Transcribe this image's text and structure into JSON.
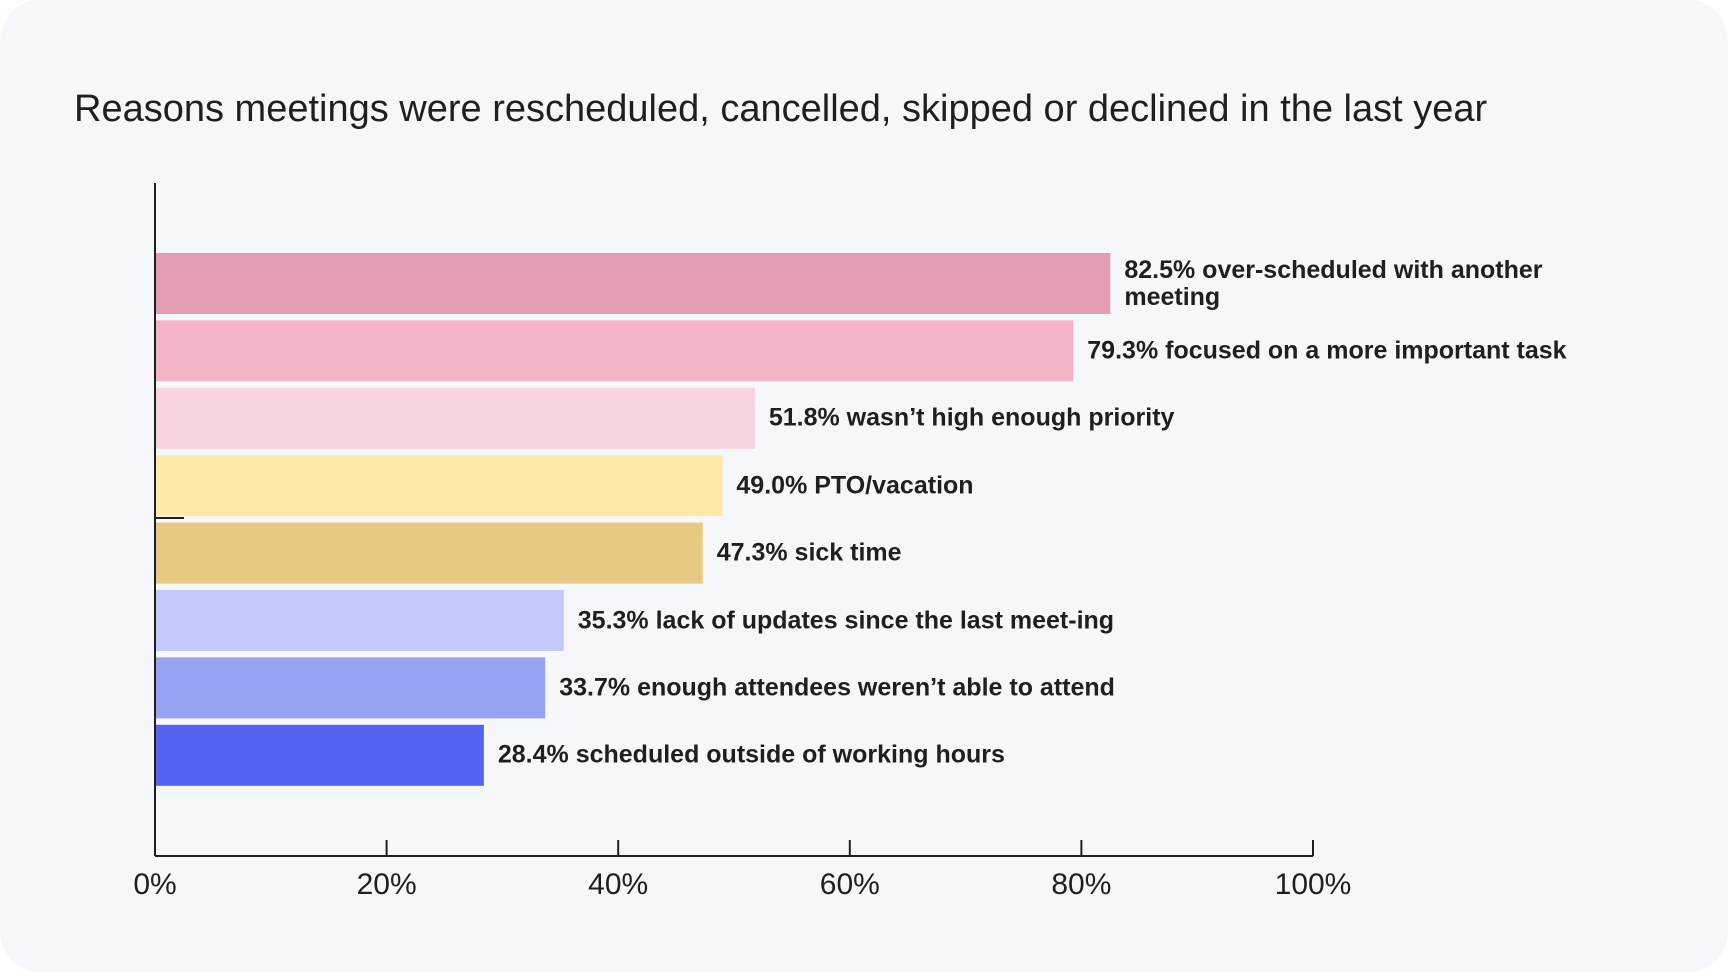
{
  "chart_data": {
    "type": "bar",
    "orientation": "horizontal",
    "title": "Reasons meetings were rescheduled, cancelled, skipped or declined in the last year",
    "xlabel": "",
    "ylabel": "",
    "xlim": [
      0,
      100
    ],
    "x_ticks": [
      "0%",
      "20%",
      "40%",
      "60%",
      "80%",
      "100%"
    ],
    "grid": false,
    "bars": [
      {
        "value": 82.5,
        "label": "82.5% over-scheduled with another meeting",
        "color": "#e29db3"
      },
      {
        "value": 79.3,
        "label": "79.3% focused on a more important task",
        "color": "#f3b4c6"
      },
      {
        "value": 51.8,
        "label": "51.8% wasn’t high enough priority",
        "color": "#f9d3df"
      },
      {
        "value": 49.0,
        "label": "49.0% PTO/vacation",
        "color": "#fee9a7"
      },
      {
        "value": 47.3,
        "label": "47.3% sick time",
        "color": "#e8c983"
      },
      {
        "value": 35.3,
        "label": "35.3% lack of updates since the last meet-ing",
        "color": "#c3c9f8"
      },
      {
        "value": 33.7,
        "label": "33.7% enough attendees weren’t able to attend",
        "color": "#98a2f2"
      },
      {
        "value": 28.4,
        "label": "28.4% scheduled outside of working hours",
        "color": "#5563f3"
      }
    ]
  }
}
